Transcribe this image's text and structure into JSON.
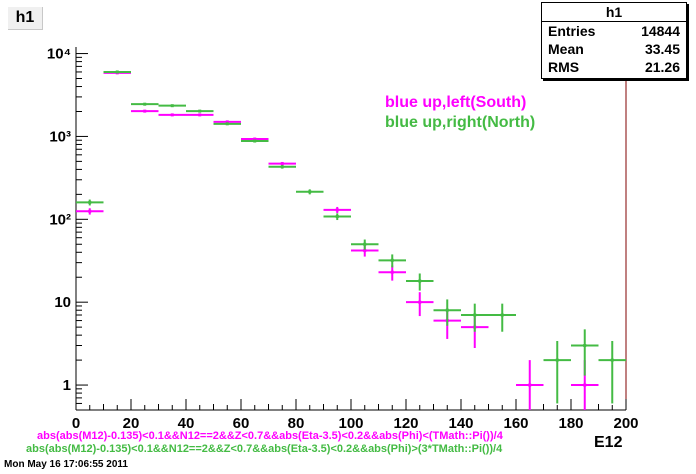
{
  "title": "h1",
  "stats": {
    "name": "h1",
    "rows": [
      {
        "label": "Entries",
        "value": "14844"
      },
      {
        "label": "Mean",
        "value": "33.45"
      },
      {
        "label": "RMS",
        "value": "21.26"
      }
    ]
  },
  "colors": {
    "magenta": "#ff00ff",
    "green": "#44bb44",
    "axis": "#000000"
  },
  "chart_data": {
    "type": "scatter",
    "xlabel": "E12",
    "ylabel": "",
    "xlim": [
      0,
      200
    ],
    "ylim": [
      0.5,
      12000
    ],
    "yscale": "log",
    "x_ticks": [
      0,
      20,
      40,
      60,
      80,
      100,
      120,
      140,
      160,
      180,
      200
    ],
    "x_tick_labels": [
      "0",
      "20",
      "40",
      "60",
      "80",
      "100",
      "120",
      "140",
      "160",
      "180",
      "200"
    ],
    "y_ticks": [
      1,
      10,
      100,
      1000,
      10000
    ],
    "y_tick_labels": [
      "1",
      "10",
      "10²",
      "10³",
      "10⁴"
    ],
    "series": [
      {
        "name": "blue up,left(South)",
        "color": "#ff00ff",
        "points": [
          {
            "x": 5,
            "y": 125,
            "xerr": 5,
            "yerr": 11
          },
          {
            "x": 15,
            "y": 5850,
            "xerr": 5,
            "yerr": 76
          },
          {
            "x": 25,
            "y": 2020,
            "xerr": 5,
            "yerr": 45
          },
          {
            "x": 35,
            "y": 1820,
            "xerr": 5,
            "yerr": 43
          },
          {
            "x": 45,
            "y": 1820,
            "xerr": 5,
            "yerr": 43
          },
          {
            "x": 55,
            "y": 1500,
            "xerr": 5,
            "yerr": 39
          },
          {
            "x": 65,
            "y": 930,
            "xerr": 5,
            "yerr": 30
          },
          {
            "x": 75,
            "y": 470,
            "xerr": 5,
            "yerr": 22
          },
          {
            "x": 95,
            "y": 130,
            "xerr": 5,
            "yerr": 11
          },
          {
            "x": 105,
            "y": 42,
            "xerr": 5,
            "yerr": 6.5
          },
          {
            "x": 115,
            "y": 23,
            "xerr": 5,
            "yerr": 4.8
          },
          {
            "x": 125,
            "y": 10,
            "xerr": 5,
            "yerr": 3.2
          },
          {
            "x": 135,
            "y": 6,
            "xerr": 5,
            "yerr": 2.4
          },
          {
            "x": 145,
            "y": 5,
            "xerr": 5,
            "yerr": 2.2
          },
          {
            "x": 165,
            "y": 1,
            "xerr": 5,
            "yerr": 1
          },
          {
            "x": 185,
            "y": 1,
            "xerr": 5,
            "yerr": 1
          }
        ]
      },
      {
        "name": "blue up,right(North)",
        "color": "#44bb44",
        "points": [
          {
            "x": 5,
            "y": 160,
            "xerr": 5,
            "yerr": 13
          },
          {
            "x": 15,
            "y": 6000,
            "xerr": 5,
            "yerr": 77
          },
          {
            "x": 25,
            "y": 2450,
            "xerr": 5,
            "yerr": 49
          },
          {
            "x": 35,
            "y": 2350,
            "xerr": 5,
            "yerr": 48
          },
          {
            "x": 45,
            "y": 2020,
            "xerr": 5,
            "yerr": 45
          },
          {
            "x": 55,
            "y": 1420,
            "xerr": 5,
            "yerr": 38
          },
          {
            "x": 65,
            "y": 880,
            "xerr": 5,
            "yerr": 30
          },
          {
            "x": 75,
            "y": 430,
            "xerr": 5,
            "yerr": 21
          },
          {
            "x": 85,
            "y": 215,
            "xerr": 5,
            "yerr": 15
          },
          {
            "x": 95,
            "y": 108,
            "xerr": 5,
            "yerr": 10
          },
          {
            "x": 105,
            "y": 50,
            "xerr": 5,
            "yerr": 7
          },
          {
            "x": 115,
            "y": 32,
            "xerr": 5,
            "yerr": 5.7
          },
          {
            "x": 125,
            "y": 18,
            "xerr": 5,
            "yerr": 4.2
          },
          {
            "x": 135,
            "y": 8,
            "xerr": 5,
            "yerr": 2.8
          },
          {
            "x": 145,
            "y": 7,
            "xerr": 5,
            "yerr": 2.6
          },
          {
            "x": 155,
            "y": 7,
            "xerr": 5,
            "yerr": 2.6
          },
          {
            "x": 175,
            "y": 2,
            "xerr": 5,
            "yerr": 1.4
          },
          {
            "x": 185,
            "y": 3,
            "xerr": 5,
            "yerr": 1.7
          },
          {
            "x": 195,
            "y": 2,
            "xerr": 5,
            "yerr": 1.4
          }
        ]
      }
    ],
    "annotations": [
      "abs(abs(M12)-0.135)<0.1&&N12==2&&Z<0.7&&abs(Eta-3.5)<0.2&&abs(Phi)<(TMath::Pi())/4",
      "abs(abs(M12)-0.135)<0.1&&N12==2&&Z<0.7&&abs(Eta-3.5)<0.2&&abs(Phi)>(3*TMath::Pi())/4"
    ],
    "legend_position": "top-right",
    "grid": false
  },
  "timestamp": "Mon May 16 17:06:55 2011"
}
